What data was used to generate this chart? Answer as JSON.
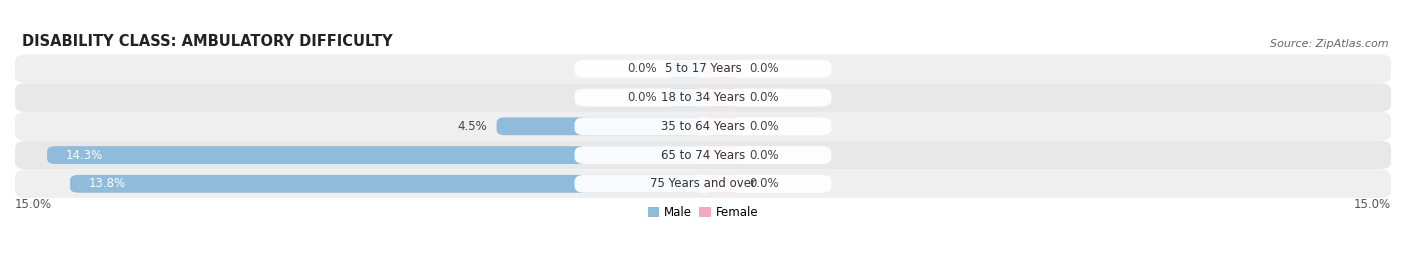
{
  "title": "DISABILITY CLASS: AMBULATORY DIFFICULTY",
  "source": "Source: ZipAtlas.com",
  "categories": [
    "5 to 17 Years",
    "18 to 34 Years",
    "35 to 64 Years",
    "65 to 74 Years",
    "75 Years and over"
  ],
  "male_values": [
    0.0,
    0.0,
    4.5,
    14.3,
    13.8
  ],
  "female_values": [
    0.0,
    0.0,
    0.0,
    0.0,
    0.0
  ],
  "male_color": "#8fbcdb",
  "female_color": "#f2a8bf",
  "row_bg_color": "#efefef",
  "row_bg_alt_color": "#e8e8e8",
  "label_bg_color": "#ffffff",
  "x_max": 15.0,
  "x_min": -15.0,
  "min_bar_val": 0.8,
  "legend_male": "Male",
  "legend_female": "Female",
  "title_fontsize": 10.5,
  "source_fontsize": 8,
  "label_fontsize": 8.5,
  "cat_label_fontsize": 8.5,
  "bar_height": 0.62,
  "axis_label_left": "15.0%",
  "axis_label_right": "15.0%"
}
